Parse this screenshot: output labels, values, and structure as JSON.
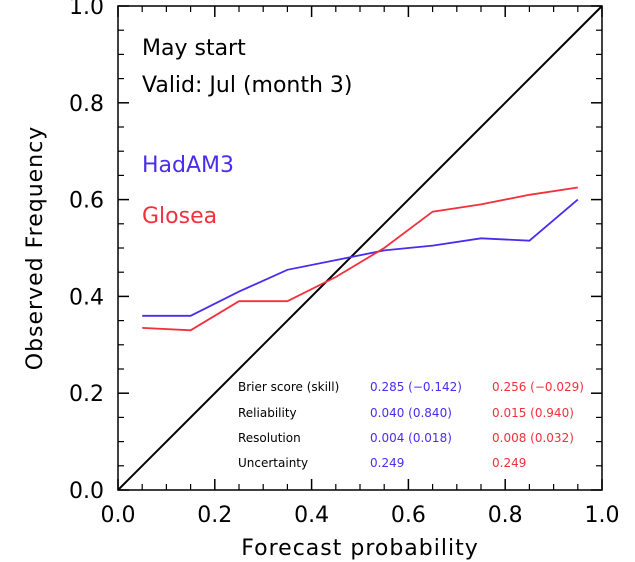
{
  "chart_data": {
    "type": "line",
    "title": "",
    "xlabel": "Forecast probability",
    "ylabel": "Observed Frequency",
    "xlim": [
      0.0,
      1.0
    ],
    "ylim": [
      0.0,
      1.0
    ],
    "x_tick_labels": [
      "0.0",
      "0.2",
      "0.4",
      "0.6",
      "0.8",
      "1.0"
    ],
    "y_tick_labels": [
      "0.0",
      "0.2",
      "0.4",
      "0.6",
      "0.8",
      "1.0"
    ],
    "annotations": [
      "May start",
      "Valid: Jul (month 3)"
    ],
    "diagonal": {
      "x": [
        0.0,
        1.0
      ],
      "y": [
        0.0,
        1.0
      ],
      "color": "#000000"
    },
    "series": [
      {
        "name": "HadAM3",
        "color": "#4a2cf0",
        "x": [
          0.05,
          0.15,
          0.25,
          0.35,
          0.45,
          0.55,
          0.65,
          0.75,
          0.85,
          0.95
        ],
        "y": [
          0.36,
          0.36,
          0.41,
          0.455,
          0.475,
          0.495,
          0.505,
          0.52,
          0.515,
          0.6
        ]
      },
      {
        "name": "Glosea",
        "color": "#f0303c",
        "x": [
          0.05,
          0.15,
          0.25,
          0.35,
          0.45,
          0.55,
          0.65,
          0.75,
          0.85,
          0.95
        ],
        "y": [
          0.335,
          0.33,
          0.39,
          0.39,
          0.44,
          0.5,
          0.575,
          0.59,
          0.61,
          0.625
        ]
      }
    ],
    "scores": {
      "rows": [
        {
          "label": "Brier score (skill)",
          "values": [
            "0.285 (−0.142)",
            "0.256 (−0.029)"
          ]
        },
        {
          "label": "Reliability",
          "values": [
            "0.040 (0.840)",
            "0.015 (0.940)"
          ]
        },
        {
          "label": "Resolution",
          "values": [
            "0.004 (0.018)",
            "0.008 (0.032)"
          ]
        },
        {
          "label": "Uncertainty",
          "values": [
            "0.249",
            "0.249"
          ]
        }
      ]
    },
    "grid": false,
    "legend_placement": "left"
  }
}
